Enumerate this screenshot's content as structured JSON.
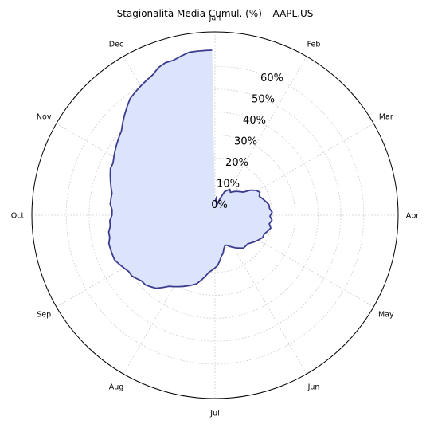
{
  "chart_data": {
    "type": "area",
    "subtype": "polar",
    "title": "Stagionalità Media Cumul. (%) – AAPL.US",
    "theta_labels": [
      "Jan",
      "Feb",
      "Mar",
      "Apr",
      "May",
      "Jun",
      "Jul",
      "Aug",
      "Sep",
      "Oct",
      "Nov",
      "Dec"
    ],
    "r_tick_labels": [
      "0%",
      "10%",
      "20%",
      "30%",
      "40%",
      "50%",
      "60%"
    ],
    "r_ticks": [
      0,
      10,
      20,
      30,
      40,
      50,
      60
    ],
    "r_range": [
      -5,
      75
    ],
    "grid": true,
    "line_color": "#3b3b8f",
    "fill_color": "#dbe4fa",
    "series": [
      {
        "values": [
          [
            1,
            1
          ],
          [
            5,
            3
          ],
          [
            9,
            -1
          ],
          [
            14,
            1
          ],
          [
            18,
            3
          ],
          [
            22,
            6
          ],
          [
            26,
            7
          ],
          [
            30,
            8
          ],
          [
            34,
            7
          ],
          [
            38,
            8
          ],
          [
            42,
            9
          ],
          [
            47,
            10
          ],
          [
            51,
            11
          ],
          [
            55,
            14
          ],
          [
            59,
            16
          ],
          [
            63,
            17
          ],
          [
            67,
            16
          ],
          [
            71,
            17
          ],
          [
            75,
            18
          ],
          [
            79,
            19
          ],
          [
            83,
            19
          ],
          [
            87,
            20
          ],
          [
            91,
            19
          ],
          [
            95,
            20
          ],
          [
            99,
            19
          ],
          [
            103,
            20
          ],
          [
            107,
            19
          ],
          [
            111,
            18
          ],
          [
            115,
            18
          ],
          [
            119,
            17
          ],
          [
            123,
            16
          ],
          [
            127,
            15
          ],
          [
            131,
            14
          ],
          [
            135,
            14
          ],
          [
            139,
            14
          ],
          [
            143,
            13
          ],
          [
            147,
            12
          ],
          [
            151,
            11
          ],
          [
            155,
            10
          ],
          [
            159,
            9
          ],
          [
            162,
            9
          ],
          [
            165,
            10
          ],
          [
            168,
            12
          ],
          [
            171,
            13
          ],
          [
            174,
            15
          ],
          [
            177,
            17
          ],
          [
            180,
            18
          ],
          [
            183,
            19
          ],
          [
            186,
            20
          ],
          [
            189,
            22
          ],
          [
            192,
            24
          ],
          [
            195,
            26
          ],
          [
            198,
            27
          ],
          [
            201,
            28
          ],
          [
            204,
            29
          ],
          [
            207,
            30
          ],
          [
            210,
            31
          ],
          [
            213,
            32
          ],
          [
            216,
            34
          ],
          [
            219,
            36
          ],
          [
            222,
            37
          ],
          [
            225,
            38
          ],
          [
            228,
            38
          ],
          [
            231,
            39
          ],
          [
            234,
            40
          ],
          [
            237,
            40
          ],
          [
            240,
            41
          ],
          [
            243,
            42
          ],
          [
            246,
            43
          ],
          [
            249,
            43
          ],
          [
            252,
            43
          ],
          [
            255,
            43
          ],
          [
            258,
            42
          ],
          [
            261,
            42
          ],
          [
            264,
            41
          ],
          [
            267,
            41
          ],
          [
            270,
            40
          ],
          [
            273,
            40
          ],
          [
            276,
            41
          ],
          [
            279,
            41
          ],
          [
            282,
            41
          ],
          [
            285,
            42
          ],
          [
            288,
            43
          ],
          [
            291,
            44
          ],
          [
            294,
            45
          ],
          [
            297,
            45
          ],
          [
            300,
            46
          ],
          [
            303,
            47
          ],
          [
            306,
            48
          ],
          [
            309,
            49
          ],
          [
            312,
            50
          ],
          [
            315,
            52
          ],
          [
            318,
            54
          ],
          [
            321,
            56
          ],
          [
            324,
            58
          ],
          [
            327,
            59
          ],
          [
            330,
            60
          ],
          [
            333,
            61
          ],
          [
            336,
            62
          ],
          [
            339,
            64
          ],
          [
            342,
            65
          ],
          [
            345,
            65
          ],
          [
            348,
            66
          ],
          [
            351,
            67
          ],
          [
            354,
            67
          ],
          [
            357,
            67
          ],
          [
            359,
            67
          ]
        ]
      }
    ]
  }
}
